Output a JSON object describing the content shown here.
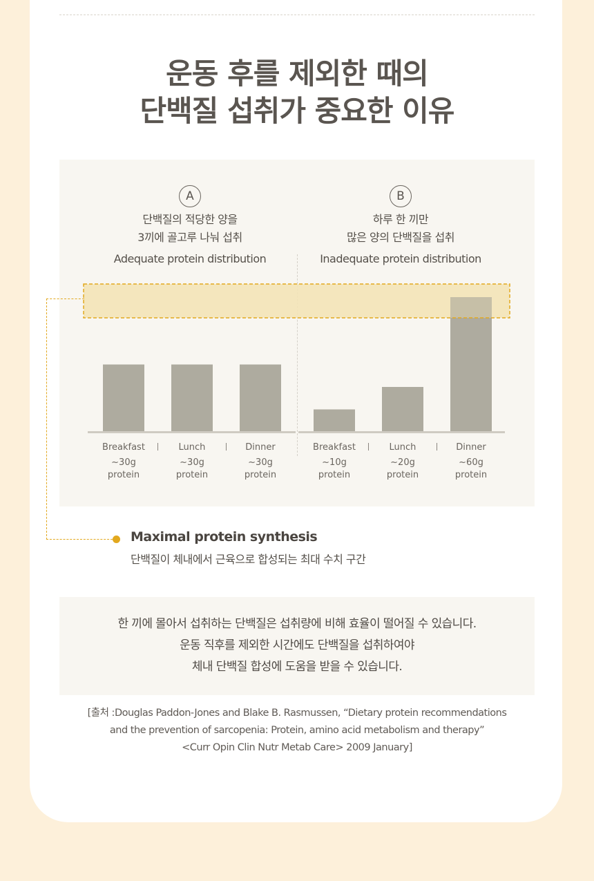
{
  "title": {
    "line1": "운동 후를 제외한 때의",
    "line2": "단백질 섭취가 중요한 이유"
  },
  "chart_data": {
    "type": "bar",
    "groups": [
      {
        "letter": "A",
        "desc_ko_1": "단백질의 적당한 양을",
        "desc_ko_2": "3끼에 골고루 나눠 섭취",
        "desc_en": "Adequate protein distribution",
        "categories": [
          "Breakfast",
          "Lunch",
          "Dinner"
        ],
        "values": [
          30,
          30,
          30
        ],
        "amount_labels": [
          "~30g",
          "~30g",
          "~30g"
        ],
        "unit_labels": [
          "protein",
          "protein",
          "protein"
        ]
      },
      {
        "letter": "B",
        "desc_ko_1": "하루 한 끼만",
        "desc_ko_2": "많은 양의 단백질을 섭취",
        "desc_en": "Inadequate protein distribution",
        "categories": [
          "Breakfast",
          "Lunch",
          "Dinner"
        ],
        "values": [
          10,
          20,
          60
        ],
        "amount_labels": [
          "~10g",
          "~20g",
          "~60g"
        ],
        "unit_labels": [
          "protein",
          "protein",
          "protein"
        ]
      }
    ],
    "threshold_band": "Maximal protein synthesis",
    "colors": {
      "bar": "#aeab9f",
      "band": "#f3e4b8",
      "band_border": "#e2a81e",
      "axis": "#cfcbc2"
    }
  },
  "zone": {
    "title": "Maximal protein synthesis",
    "subtitle": "단백질이 체내에서 근육으로 합성되는 최대 수치 구간"
  },
  "note": {
    "line1": "한 끼에 몰아서 섭취하는 단백질은 섭취량에 비해 효율이 떨어질 수 있습니다.",
    "line2": "운동 직후를 제외한 시간에도 단백질을 섭취하여야",
    "line3": "체내 단백질 합성에 도움을 받을 수 있습니다."
  },
  "source": {
    "line1": "[출처 :Douglas Paddon-Jones and Blake B. Rasmussen, “Dietary protein recommendations",
    "line2": "and the prevention of sarcopenia: Protein, amino acid metabolism and therapy”",
    "line3": "<Curr Opin Clin Nutr Metab Care> 2009 January]"
  }
}
